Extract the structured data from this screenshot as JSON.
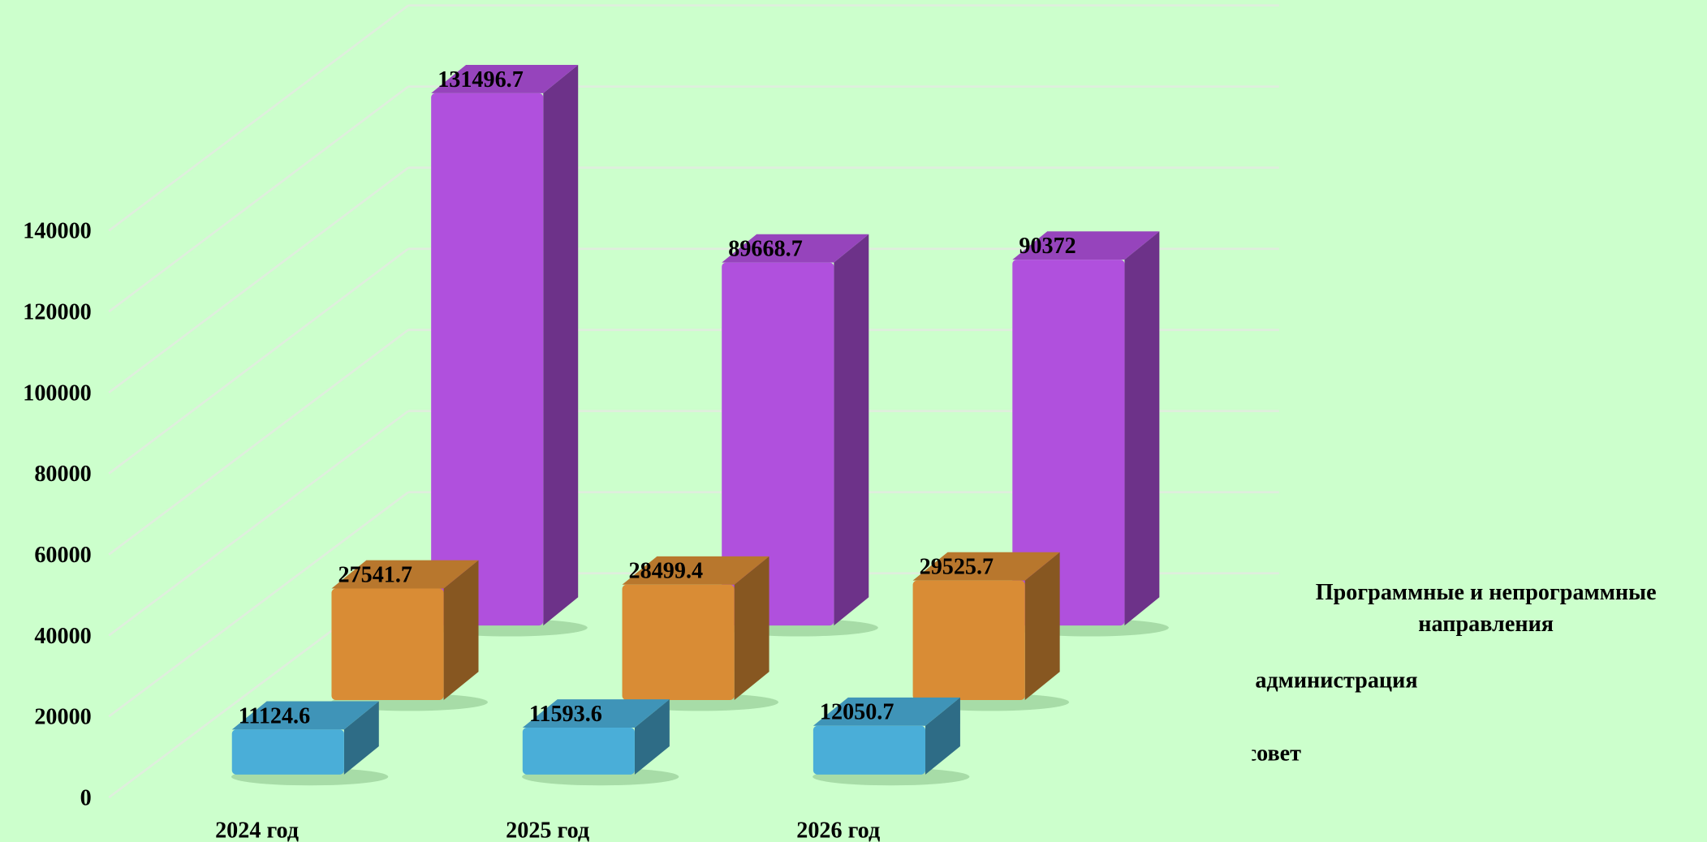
{
  "chart_data": {
    "type": "bar3d",
    "categories": [
      "2024 год",
      "2025 год",
      "2026 год"
    ],
    "series": [
      {
        "name": "Муниципальный совет",
        "color": "#4aaed8",
        "values": [
          11124.6,
          11593.6,
          12050.7
        ]
      },
      {
        "name": "Местная администрация",
        "color": "#d98c35",
        "values": [
          27541.7,
          28499.4,
          29525.7
        ]
      },
      {
        "name": "Программные и непрограммные направления",
        "color": "#b050dd",
        "values": [
          131496.7,
          89668.7,
          90372
        ]
      }
    ],
    "ylim": [
      0,
      140000
    ],
    "yticks": [
      0,
      20000,
      40000,
      60000,
      80000,
      100000,
      120000,
      140000
    ],
    "grid": true
  }
}
